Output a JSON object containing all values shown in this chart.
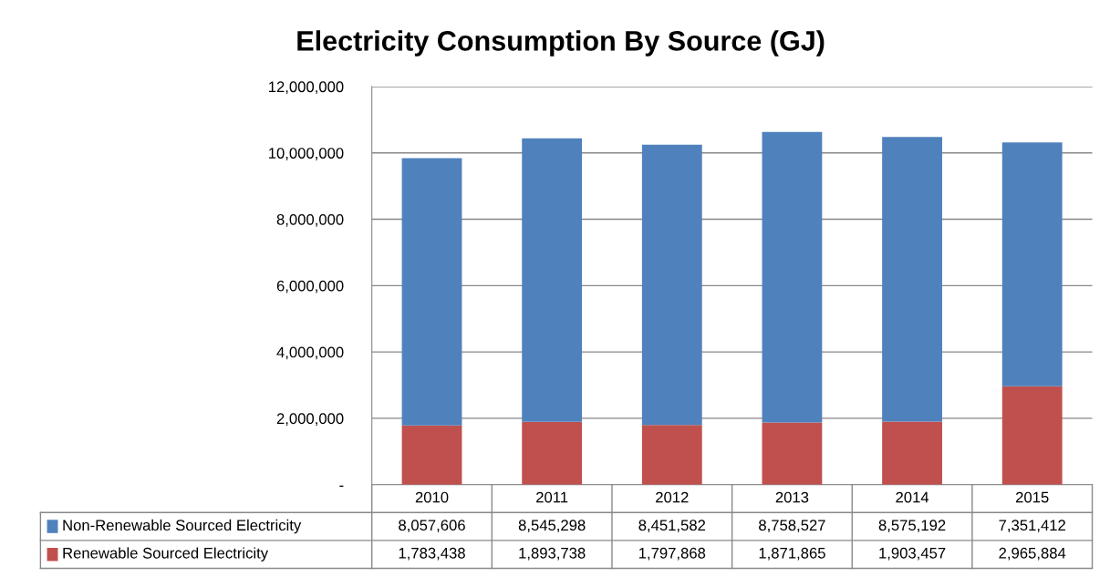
{
  "chart_data": {
    "type": "bar",
    "title": "Electricity Consumption By Source (GJ)",
    "categories": [
      "2010",
      "2011",
      "2012",
      "2013",
      "2014",
      "2015"
    ],
    "stacked": true,
    "series": [
      {
        "name": "Renewable Sourced Electricity",
        "color": "#c0504d",
        "values": [
          1783438,
          1893738,
          1797868,
          1871865,
          1903457,
          2965884
        ],
        "value_labels": [
          "1,783,438",
          "1,893,738",
          "1,797,868",
          "1,871,865",
          "1,903,457",
          "2,965,884"
        ]
      },
      {
        "name": "Non-Renewable Sourced Electricity",
        "color": "#4f81bd",
        "values": [
          8057606,
          8545298,
          8451582,
          8758527,
          8575192,
          7351412
        ],
        "value_labels": [
          "8,057,606",
          "8,545,298",
          "8,451,582",
          "8,758,527",
          "8,575,192",
          "7,351,412"
        ]
      }
    ],
    "ylim": [
      0,
      12000000
    ],
    "yticks": [
      {
        "value": 0,
        "label": "-"
      },
      {
        "value": 2000000,
        "label": "2,000,000"
      },
      {
        "value": 4000000,
        "label": "4,000,000"
      },
      {
        "value": 6000000,
        "label": "6,000,000"
      },
      {
        "value": 8000000,
        "label": "8,000,000"
      },
      {
        "value": 10000000,
        "label": "10,000,000"
      },
      {
        "value": 12000000,
        "label": "12,000,000"
      }
    ],
    "grid": "y",
    "legend": "bottom"
  }
}
